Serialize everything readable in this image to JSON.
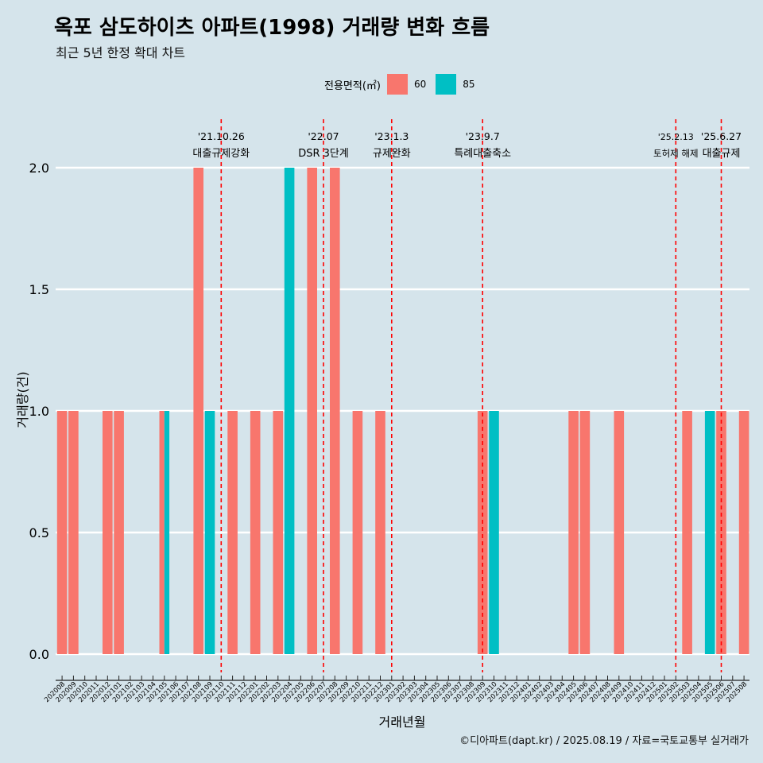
{
  "title": "옥포 삼도하이츠 아파트(1998) 거래량 변화 흐름",
  "subtitle": "최근 5년 한정 확대 차트",
  "caption": "©디아파트(dapt.kr) / 2025.08.19 / 자료=국토교통부 실거래가",
  "legend": {
    "title": "전용면적(㎡)",
    "items": [
      {
        "label": "60",
        "color": "#f8766d"
      },
      {
        "label": "85",
        "color": "#00bfc4"
      }
    ]
  },
  "chart_data": {
    "type": "bar",
    "xlabel": "거래년월",
    "ylabel": "거래량(건)",
    "ylim": [
      0,
      2
    ],
    "yticks": [
      "0.0",
      "0.5",
      "1.0",
      "1.5",
      "2.0"
    ],
    "categories": [
      "202008",
      "202009",
      "202010",
      "202011",
      "202012",
      "202101",
      "202102",
      "202103",
      "202104",
      "202105",
      "202106",
      "202107",
      "202108",
      "202109",
      "202110",
      "202111",
      "202112",
      "202201",
      "202202",
      "202203",
      "202204",
      "202205",
      "202206",
      "202207",
      "202208",
      "202209",
      "202210",
      "202211",
      "202212",
      "202301",
      "202302",
      "202303",
      "202304",
      "202305",
      "202306",
      "202307",
      "202308",
      "202309",
      "202310",
      "202311",
      "202312",
      "202401",
      "202402",
      "202403",
      "202404",
      "202405",
      "202406",
      "202407",
      "202408",
      "202409",
      "202410",
      "202411",
      "202412",
      "202501",
      "202502",
      "202503",
      "202504",
      "202505",
      "202506",
      "202507",
      "202508"
    ],
    "series": [
      {
        "name": "60",
        "color": "#f8766d",
        "values": [
          1,
          1,
          0,
          0,
          1,
          1,
          0,
          0,
          0,
          1,
          0,
          0,
          2,
          0,
          0,
          1,
          0,
          1,
          0,
          1,
          0,
          0,
          2,
          0,
          2,
          0,
          1,
          0,
          1,
          0,
          0,
          0,
          0,
          0,
          0,
          0,
          0,
          1,
          0,
          0,
          0,
          0,
          0,
          0,
          0,
          1,
          1,
          0,
          0,
          1,
          0,
          0,
          0,
          0,
          0,
          1,
          0,
          0,
          1,
          0,
          1
        ]
      },
      {
        "name": "85",
        "color": "#00bfc4",
        "values": [
          0,
          0,
          0,
          0,
          0,
          0,
          0,
          0,
          0,
          1,
          0,
          0,
          0,
          1,
          0,
          0,
          0,
          0,
          0,
          0,
          2,
          0,
          0,
          0,
          0,
          0,
          0,
          0,
          0,
          0,
          0,
          0,
          0,
          0,
          0,
          0,
          0,
          0,
          1,
          0,
          0,
          0,
          0,
          0,
          0,
          0,
          0,
          0,
          0,
          0,
          0,
          0,
          0,
          0,
          0,
          0,
          0,
          1,
          0,
          0,
          0
        ]
      }
    ],
    "annotations": [
      {
        "date": "'21.10.26",
        "text": "대출규제강화",
        "month": "202110"
      },
      {
        "date": "'22.07",
        "text": "DSR 3단계",
        "month": "202207"
      },
      {
        "date": "'23.1.3",
        "text": "규제완화",
        "month": "202301"
      },
      {
        "date": "'23.9.7",
        "text": "특례대출축소",
        "month": "202309"
      },
      {
        "date": "'25.2.13",
        "text": "토허제 해제",
        "month": "202502"
      },
      {
        "date": "'25.6.27",
        "text": "대출규제",
        "month": "202506"
      }
    ],
    "annotation_color": "#ff0000",
    "grid": true
  }
}
